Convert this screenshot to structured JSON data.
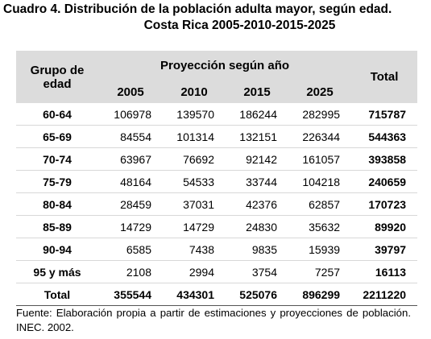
{
  "title": "Cuadro 4. Distribución de la población adulta mayor, según edad.",
  "subtitle": "Costa Rica 2005-2010-2015-2025",
  "table": {
    "header": {
      "group": "Grupo de edad",
      "projection": "Proyección según año",
      "years": [
        2005,
        2010,
        2015,
        2025
      ],
      "total": "Total"
    },
    "rows": [
      [
        "60-64",
        106978,
        139570,
        186244,
        282995,
        715787
      ],
      [
        "65-69",
        84554,
        101314,
        132151,
        226344,
        544363
      ],
      [
        "70-74",
        63967,
        76692,
        92142,
        161057,
        393858
      ],
      [
        "75-79",
        48164,
        54533,
        33744,
        104218,
        240659
      ],
      [
        "80-84",
        28459,
        37031,
        42376,
        62857,
        170723
      ],
      [
        "85-89",
        14729,
        14729,
        24830,
        35632,
        89920
      ],
      [
        "90-94",
        6585,
        7438,
        9835,
        15939,
        39797
      ],
      [
        "95 y más",
        2108,
        2994,
        3754,
        7257,
        16113
      ]
    ],
    "total_row": [
      "Total",
      355544,
      434301,
      525076,
      896299,
      2211220
    ]
  },
  "footnote": "Fuente: Elaboración propia a partir de estimaciones y proyecciones de población. INEC. 2002."
}
